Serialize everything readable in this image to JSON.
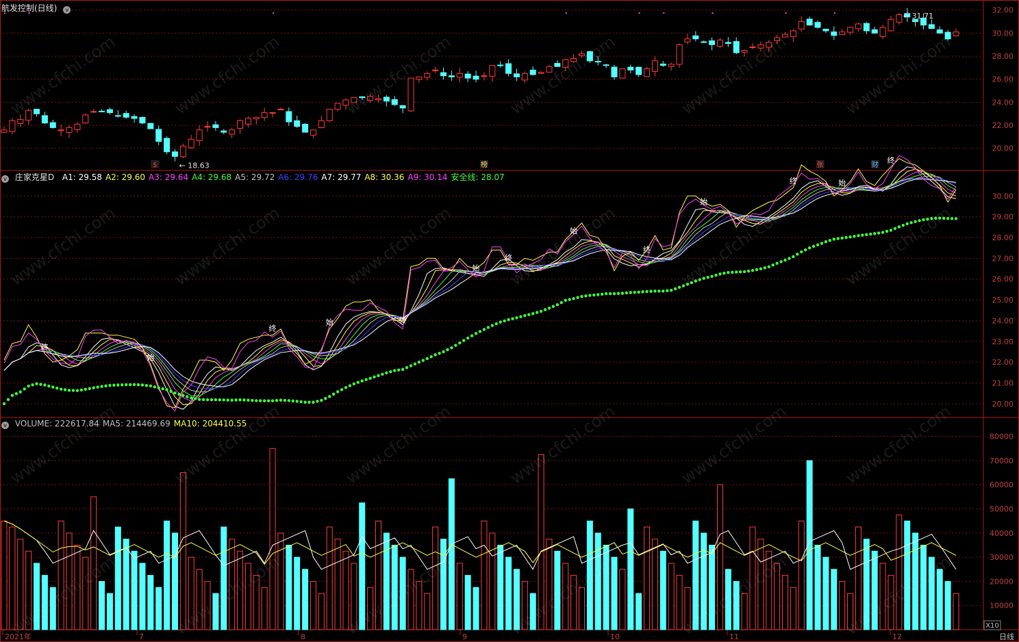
{
  "title": "航发控制(日线)",
  "watermark": "www.cfchi.com",
  "price_panel": {
    "high_label": "31.71",
    "low_label": "18.63",
    "axis_ticks": [
      "32.00",
      "30.00",
      "28.00",
      "26.00",
      "24.00",
      "22.00",
      "20.00"
    ],
    "markers": [
      {
        "text": "$",
        "color": "#ff3030"
      },
      {
        "text": "榜",
        "color": "#ffd070"
      },
      {
        "text": "张",
        "color": "#ff4040"
      },
      {
        "text": "财",
        "color": "#5fa8ff"
      }
    ]
  },
  "indicator_panel": {
    "name": "庄家克星D",
    "values": [
      {
        "label": "A1:",
        "value": "29.58",
        "color": "#ffffff"
      },
      {
        "label": "A2:",
        "value": "29.60",
        "color": "#ffff40"
      },
      {
        "label": "A3:",
        "value": "29.64",
        "color": "#ff40ff"
      },
      {
        "label": "A4:",
        "value": "29.68",
        "color": "#40ff40"
      },
      {
        "label": "A5:",
        "value": "29.72",
        "color": "#c0c0c0"
      },
      {
        "label": "A6:",
        "value": "29.76",
        "color": "#4040ff"
      },
      {
        "label": "A7:",
        "value": "29.77",
        "color": "#ffffff"
      },
      {
        "label": "A8:",
        "value": "30.36",
        "color": "#ffff40"
      },
      {
        "label": "A9:",
        "value": "30.14",
        "color": "#ff40ff"
      },
      {
        "label": "安全线:",
        "value": "28.07",
        "color": "#40ff40"
      }
    ],
    "axis_ticks": [
      "30.00",
      "29.00",
      "28.00",
      "27.00",
      "26.00",
      "25.00",
      "24.00",
      "23.00",
      "22.00",
      "21.00",
      "20.00"
    ],
    "label_start": "始",
    "label_end": "终"
  },
  "volume_panel": {
    "values": [
      {
        "label": "VOLUME:",
        "value": "222617.84",
        "color": "#c0c0c0"
      },
      {
        "label": "MA5:",
        "value": "214469.69",
        "color": "#c0c0c0"
      },
      {
        "label": "MA10:",
        "value": "204410.55",
        "color": "#ffff40"
      }
    ],
    "axis_ticks": [
      "80000",
      "70000",
      "60000",
      "50000",
      "40000",
      "30000",
      "20000",
      "10000"
    ],
    "unit": "X10"
  },
  "x_axis": {
    "labels": [
      "2021年",
      "7",
      "8",
      "9",
      "10",
      "11",
      "12"
    ],
    "period": "日线"
  },
  "chart_data": {
    "type": "candlestick",
    "title": "航发控制(日线)",
    "ylim_price": [
      18.5,
      32.4
    ],
    "ylim_indicator": [
      19.5,
      30.9
    ],
    "ylim_volume": [
      0,
      85000
    ],
    "closes": [
      21.6,
      22.4,
      22.5,
      23.3,
      23.0,
      22.2,
      21.8,
      21.6,
      21.8,
      22.1,
      22.9,
      23.2,
      23.2,
      23.1,
      22.8,
      22.7,
      22.6,
      22.2,
      21.7,
      20.6,
      19.7,
      19.3,
      20.2,
      20.8,
      21.6,
      21.9,
      21.8,
      21.4,
      21.6,
      22.4,
      22.6,
      22.7,
      23.1,
      23.1,
      23.4,
      22.3,
      21.9,
      21.4,
      21.6,
      22.4,
      23.4,
      23.9,
      24.2,
      24.4,
      24.4,
      24.5,
      24.3,
      24.1,
      23.8,
      23.5,
      26.1,
      26.2,
      26.5,
      26.8,
      26.3,
      26.2,
      26.5,
      26.1,
      26.0,
      26.3,
      27.2,
      27.2,
      26.5,
      26.2,
      26.5,
      26.4,
      26.6,
      27.1,
      27.1,
      27.7,
      27.8,
      28.2,
      27.6,
      27.5,
      27.2,
      26.2,
      26.9,
      26.8,
      26.4,
      26.9,
      27.6,
      27.2,
      27.3,
      29.0,
      29.5,
      29.5,
      29.2,
      29.0,
      29.4,
      29.1,
      28.3,
      28.5,
      28.8,
      29.0,
      29.2,
      29.6,
      29.9,
      30.2,
      31.0,
      30.7,
      30.5,
      30.2,
      29.8,
      30.1,
      30.5,
      30.8,
      30.2,
      30.0,
      30.5,
      31.2,
      31.6,
      31.4,
      31.0,
      30.7,
      30.4,
      30.0,
      29.5,
      30.1
    ]
  }
}
